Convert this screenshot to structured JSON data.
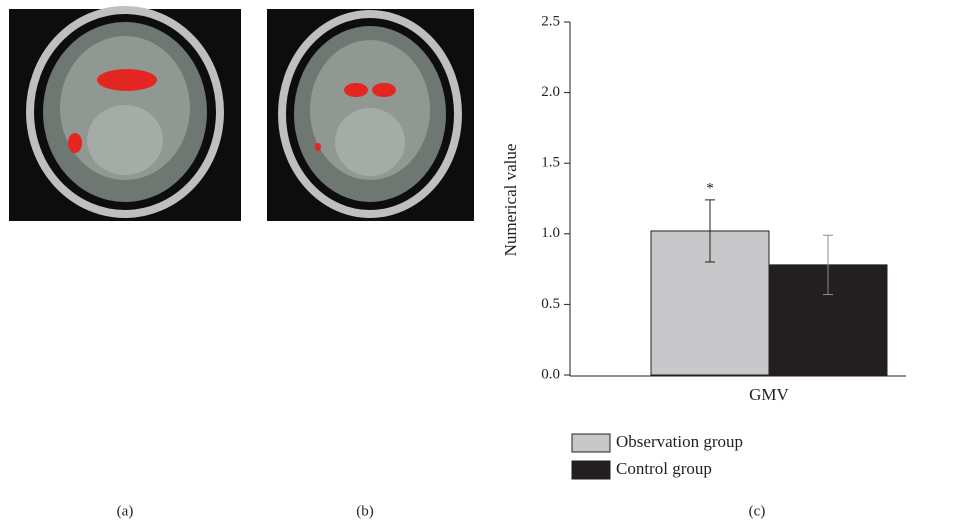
{
  "panel_labels": [
    "(a)",
    "(b)",
    "(c)"
  ],
  "chart_data": {
    "type": "bar",
    "y_label": "Numerical value",
    "categories": [
      "GMV"
    ],
    "series": [
      {
        "name": "Observation group",
        "color": "#c8c8ca",
        "values": [
          1.02
        ],
        "errors": [
          0.22
        ]
      },
      {
        "name": "Control group",
        "color": "#231f20",
        "values": [
          0.78
        ],
        "errors": [
          0.21
        ]
      }
    ],
    "annotation": "*",
    "ylim": [
      0,
      2.5
    ],
    "yticks": [
      {
        "value": 0,
        "label": "0.0"
      },
      0.5,
      {
        "value": 1,
        "label": "1.0"
      },
      1.5,
      {
        "value": 2,
        "label": "2.0"
      },
      2.5
    ],
    "grid": false
  }
}
